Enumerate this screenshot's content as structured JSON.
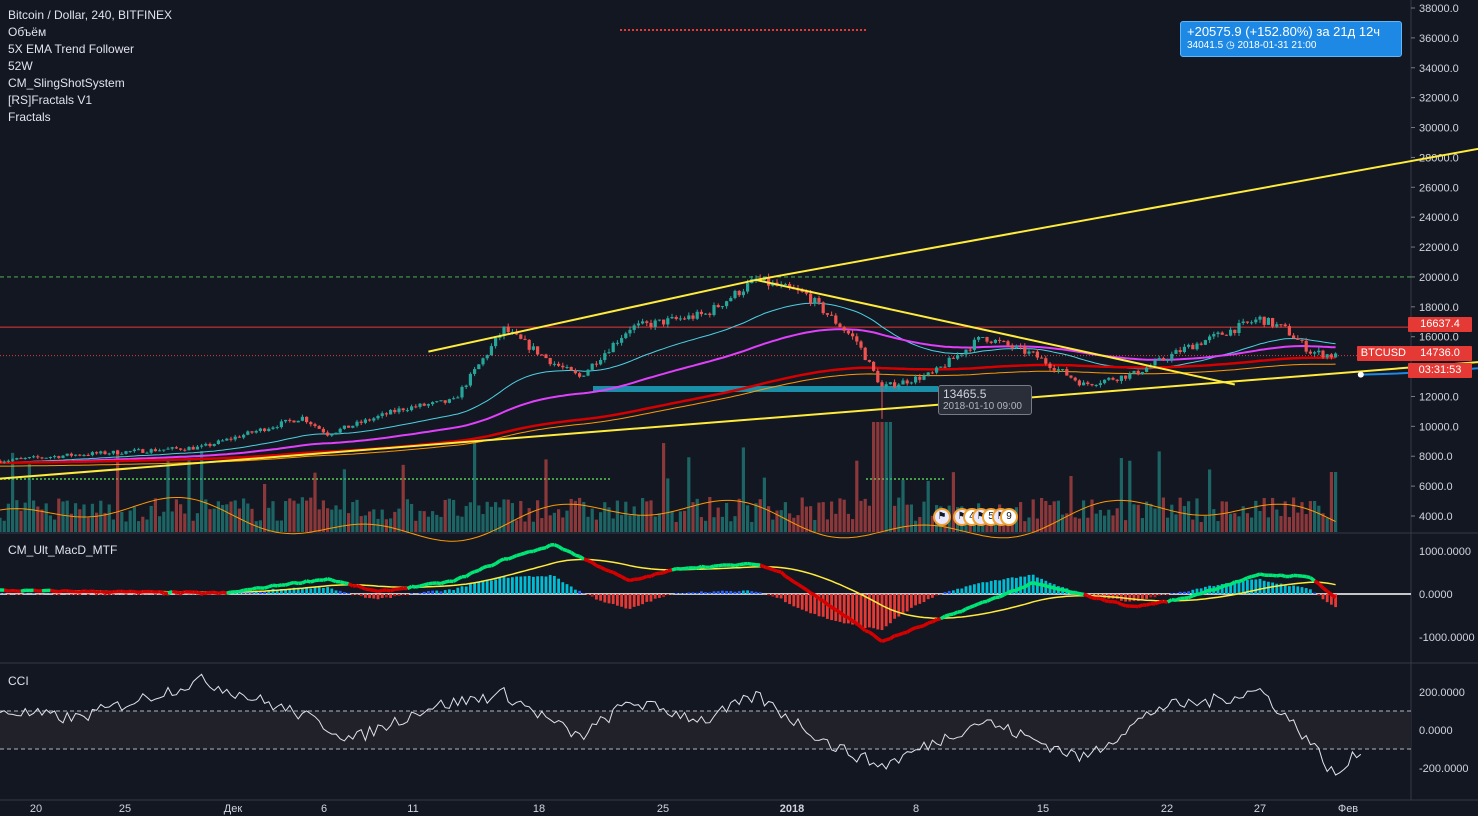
{
  "legend": {
    "symbol": "Bitcoin / Dollar, 240, BITFINEX",
    "indicators": [
      "Объём",
      "5X EMA Trend Follower",
      "52W",
      "CM_SlingShotSystem",
      "[RS]Fractals V1",
      "Fractals"
    ]
  },
  "panes": {
    "macd_title": "CM_Ult_MacD_MTF",
    "cci_title": "CCI"
  },
  "price_tags": {
    "resistance": "16637.4",
    "symbol": "BTCUSD",
    "last": "14736.0",
    "countdown": "03:31:53"
  },
  "measure_tooltip": {
    "line1": "+20575.9 (+152.80%) за 21д 12ч",
    "price": "34041.5",
    "date": "2018-01-31  21:00"
  },
  "point_tooltip": {
    "price": "13465.5",
    "date": "2018-01-10 09:00"
  },
  "events": [
    "4",
    "5",
    "9"
  ],
  "colors": {
    "background": "#131722",
    "up": "#26a69a",
    "down": "#ef5350",
    "trendline": "#ffeb3b",
    "measure": "#1e88e5"
  },
  "chart_data": [
    {
      "type": "candlestick",
      "title": "Bitcoin / Dollar, 240, BITFINEX",
      "x_ticks": [
        "20",
        "25",
        "Дек",
        "6",
        "11",
        "18",
        "25",
        "2018",
        "8",
        "15",
        "22",
        "27",
        "Фев"
      ],
      "y_ticks": [
        "4000.0",
        "6000.0",
        "8000.0",
        "10000.0",
        "12000.0",
        "14000.0",
        "16000.0",
        "18000.0",
        "20000.0",
        "22000.0",
        "24000.0",
        "26000.0",
        "28000.0",
        "30000.0",
        "32000.0",
        "34000.0",
        "36000.0",
        "38000.0"
      ],
      "ylim": [
        2800,
        38600
      ],
      "price_path": [
        [
          "2017-11-17",
          7700
        ],
        [
          "2017-11-20",
          8100
        ],
        [
          "2017-11-25",
          8600
        ],
        [
          "2017-11-29",
          10600
        ],
        [
          "2017-11-30",
          9500
        ],
        [
          "2017-12-03",
          11200
        ],
        [
          "2017-12-05",
          11700
        ],
        [
          "2017-12-07",
          16500
        ],
        [
          "2017-12-09",
          14200
        ],
        [
          "2017-12-10",
          13300
        ],
        [
          "2017-12-12",
          16600
        ],
        [
          "2017-12-15",
          17500
        ],
        [
          "2017-12-17",
          19800
        ],
        [
          "2017-12-19",
          18800
        ],
        [
          "2017-12-21",
          15700
        ],
        [
          "2017-12-22",
          12600
        ],
        [
          "2017-12-24",
          13500
        ],
        [
          "2017-12-26",
          16000
        ],
        [
          "2017-12-28",
          14800
        ],
        [
          "2017-12-30",
          12800
        ],
        [
          "2018-01-01",
          13500
        ],
        [
          "2018-01-03",
          15200
        ],
        [
          "2018-01-06",
          17200
        ],
        [
          "2018-01-07",
          16500
        ],
        [
          "2018-01-08",
          15000
        ],
        [
          "2018-01-09",
          14700
        ]
      ],
      "horizontal_levels": {
        "resistance": 16637.4,
        "last_price": 14736.0,
        "round_level": 20000,
        "support_zone": [
          12300,
          12700
        ]
      },
      "trendlines": [
        {
          "from": [
            "2017-12-04",
            15000
          ],
          "to": [
            "2017-12-17",
            19800
          ]
        },
        {
          "from": [
            "2017-12-17",
            19800
          ],
          "to": [
            "2018-01-05",
            12800
          ]
        },
        {
          "from": [
            "2017-12-17",
            19800
          ],
          "to": [
            "2018-02-04",
            34800
          ]
        },
        {
          "from": [
            "2017-11-17",
            6500
          ],
          "to": [
            "2018-02-04",
            17000
          ]
        }
      ],
      "projection": {
        "from": [
          "2018-01-10",
          13465.5
        ],
        "to": [
          "2018-01-31",
          34041.5
        ]
      }
    },
    {
      "type": "histogram",
      "title": "CM_Ult_MacD_MTF",
      "y_ticks": [
        "1000.0000",
        "0.0000",
        "-1000.0000"
      ],
      "ylim": [
        -1300,
        1300
      ],
      "macd_path": [
        [
          "2017-11-17",
          80
        ],
        [
          "2017-11-26",
          20
        ],
        [
          "2017-11-28",
          200
        ],
        [
          "2017-11-30",
          350
        ],
        [
          "2017-12-02",
          50
        ],
        [
          "2017-12-05",
          300
        ],
        [
          "2017-12-07",
          800
        ],
        [
          "2017-12-09",
          1150
        ],
        [
          "2017-12-12",
          300
        ],
        [
          "2017-12-14",
          600
        ],
        [
          "2017-12-17",
          700
        ],
        [
          "2017-12-18",
          500
        ],
        [
          "2017-12-20",
          -300
        ],
        [
          "2017-12-22",
          -1100
        ],
        [
          "2017-12-26",
          -200
        ],
        [
          "2017-12-28",
          250
        ],
        [
          "2018-01-01",
          -300
        ],
        [
          "2018-01-03",
          -100
        ],
        [
          "2018-01-06",
          450
        ],
        [
          "2018-01-08",
          400
        ],
        [
          "2018-01-09",
          -100
        ]
      ]
    },
    {
      "type": "line",
      "title": "CCI",
      "y_ticks": [
        "200.0000",
        "0.0000",
        "-200.0000"
      ],
      "ylim": [
        -320,
        300
      ],
      "bands": [
        100,
        -100
      ],
      "cci_path": [
        [
          "2017-11-17",
          100
        ],
        [
          "2017-11-20",
          60
        ],
        [
          "2017-11-25",
          260
        ],
        [
          "2017-11-29",
          80
        ],
        [
          "2017-12-01",
          -50
        ],
        [
          "2017-12-04",
          120
        ],
        [
          "2017-12-07",
          190
        ],
        [
          "2017-12-10",
          -40
        ],
        [
          "2017-12-12",
          150
        ],
        [
          "2017-12-15",
          50
        ],
        [
          "2017-12-17",
          180
        ],
        [
          "2017-12-20",
          -80
        ],
        [
          "2017-12-22",
          -190
        ],
        [
          "2017-12-26",
          50
        ],
        [
          "2017-12-30",
          -150
        ],
        [
          "2018-01-02",
          120
        ],
        [
          "2018-01-04",
          150
        ],
        [
          "2018-01-06",
          210
        ],
        [
          "2018-01-08",
          -60
        ],
        [
          "2018-01-09",
          -250
        ],
        [
          "2018-01-10",
          -100
        ]
      ]
    }
  ]
}
